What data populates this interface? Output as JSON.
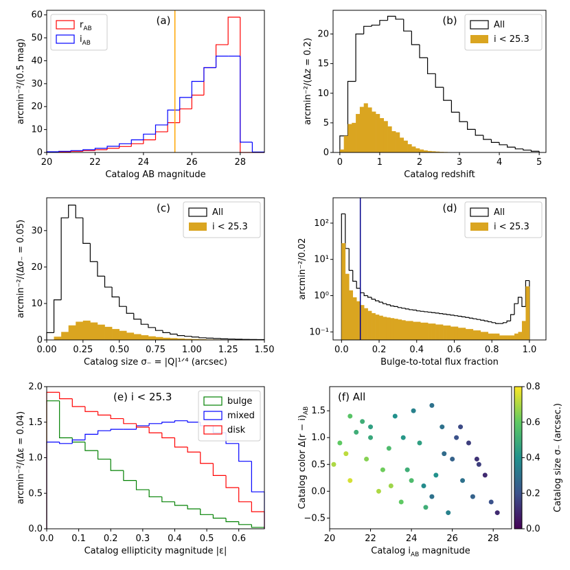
{
  "chart_data": [
    {
      "type": "histogram",
      "annotation": "(a)",
      "xlabel": "Catalog AB magnitude",
      "ylabel": "arcmin⁻²/(0.5 mag)",
      "xlim": [
        20,
        29
      ],
      "ylim": [
        0,
        62
      ],
      "xticks": [
        20,
        22,
        24,
        26,
        28
      ],
      "yticks": [
        0,
        10,
        20,
        30,
        40,
        50,
        60
      ],
      "legend": "upper left",
      "series": [
        {
          "name": "r_AB",
          "color": "#ff0000",
          "histtype": "step",
          "bins": [
            20,
            20.5,
            21,
            21.5,
            22,
            22.5,
            23,
            23.5,
            24,
            24.5,
            25,
            25.5,
            26,
            26.5,
            27,
            27.5,
            28,
            28.5,
            29
          ],
          "values": [
            0.2,
            0.3,
            0.5,
            0.8,
            1.2,
            1.8,
            2.6,
            3.8,
            5.5,
            9,
            13,
            19,
            25,
            37,
            47,
            59,
            0,
            0
          ]
        },
        {
          "name": "i_AB",
          "color": "#0000ff",
          "histtype": "step",
          "bins": [
            20,
            20.5,
            21,
            21.5,
            22,
            22.5,
            23,
            23.5,
            24,
            24.5,
            25,
            25.5,
            26,
            26.5,
            27,
            27.5,
            28,
            28.5,
            29
          ],
          "values": [
            0.3,
            0.5,
            0.8,
            1.2,
            1.8,
            2.7,
            3.8,
            5.5,
            8,
            12,
            18.5,
            24,
            31,
            37,
            42,
            42,
            4.5,
            0.2
          ]
        }
      ],
      "vlines": [
        {
          "x": 25.3,
          "color": "#ffa500"
        }
      ]
    },
    {
      "type": "histogram",
      "annotation": "(b)",
      "xlabel": "Catalog redshift",
      "ylabel": "arcmin⁻²/(Δz = 0.2)",
      "xlim": [
        -0.17,
        5.17
      ],
      "ylim": [
        0,
        24
      ],
      "xticks": [
        0,
        1,
        2,
        3,
        4,
        5
      ],
      "yticks": [
        0,
        5,
        10,
        15,
        20
      ],
      "legend": "upper right",
      "series": [
        {
          "name": "All",
          "color": "#000000",
          "histtype": "step",
          "bins": [
            0,
            0.2,
            0.4,
            0.6,
            0.8,
            1,
            1.2,
            1.4,
            1.6,
            1.8,
            2,
            2.2,
            2.4,
            2.6,
            2.8,
            3,
            3.2,
            3.4,
            3.6,
            3.8,
            4,
            4.2,
            4.4,
            4.6,
            4.8,
            5
          ],
          "values": [
            2.8,
            12,
            20,
            21.3,
            21.5,
            22.3,
            23,
            22.5,
            20.5,
            18.2,
            16,
            13.3,
            11,
            8.8,
            6.8,
            5.2,
            3.9,
            2.9,
            2.2,
            1.7,
            1.3,
            0.9,
            0.6,
            0.4,
            0.2
          ]
        },
        {
          "name": "i < 25.3",
          "color": "#daa520",
          "histtype": "stepfilled",
          "bins": [
            0,
            0.1,
            0.2,
            0.3,
            0.4,
            0.5,
            0.6,
            0.7,
            0.8,
            0.9,
            1,
            1.1,
            1.2,
            1.3,
            1.4,
            1.5,
            1.6,
            1.7,
            1.8,
            1.9,
            2,
            2.1,
            2.2,
            2.3,
            2.4,
            2.5,
            2.6,
            2.7,
            2.8,
            2.9,
            3
          ],
          "values": [
            0.5,
            2.8,
            4.8,
            5.0,
            6.5,
            7.7,
            8.3,
            7.6,
            6.9,
            6.5,
            5.8,
            5.3,
            4.4,
            3.6,
            3.4,
            2.5,
            2.0,
            1.4,
            1.0,
            0.7,
            0.5,
            0.35,
            0.25,
            0.2,
            0.15,
            0.1,
            0.08,
            0.06,
            0.04,
            0.03
          ]
        }
      ]
    },
    {
      "type": "histogram",
      "annotation": "(c)",
      "xlabel": "Catalog size σ₋ = |Q|¹ᐟ⁴ (arcsec)",
      "ylabel": "arcmin⁻²/(Δσ₋ = 0.05)",
      "xlim": [
        0,
        1.5
      ],
      "ylim": [
        0,
        39
      ],
      "xticks": [
        {
          "value": 0,
          "label": "0.00"
        },
        0.25,
        {
          "value": 0.5,
          "label": "0.50"
        },
        0.75,
        {
          "value": 1,
          "label": "1.00"
        },
        1.25,
        {
          "value": 1.5,
          "label": "1.50"
        }
      ],
      "yticks": [
        0,
        10,
        20,
        30
      ],
      "legend": "upper right",
      "series": [
        {
          "name": "All",
          "color": "#000000",
          "histtype": "step",
          "bins": [
            0,
            0.05,
            0.1,
            0.15,
            0.2,
            0.25,
            0.3,
            0.35,
            0.4,
            0.45,
            0.5,
            0.55,
            0.6,
            0.65,
            0.7,
            0.75,
            0.8,
            0.85,
            0.9,
            0.95,
            1,
            1.05,
            1.1,
            1.15,
            1.2,
            1.25,
            1.3,
            1.35,
            1.4,
            1.45,
            1.5
          ],
          "values": [
            2,
            11,
            33.5,
            37,
            33.5,
            26.5,
            21.5,
            17.5,
            14.5,
            11.8,
            9.2,
            7.3,
            5.7,
            4.3,
            3.4,
            2.6,
            2.0,
            1.6,
            1.2,
            1.0,
            0.8,
            0.6,
            0.5,
            0.4,
            0.3,
            0.25,
            0.2,
            0.15,
            0.12,
            0.1
          ]
        },
        {
          "name": "i < 25.3",
          "color": "#daa520",
          "histtype": "stepfilled",
          "bins": [
            0.05,
            0.1,
            0.15,
            0.2,
            0.25,
            0.3,
            0.35,
            0.4,
            0.45,
            0.5,
            0.55,
            0.6,
            0.65,
            0.7,
            0.75,
            0.8,
            0.85,
            0.9,
            0.95,
            1,
            1.05,
            1.1,
            1.15,
            1.2,
            1.25,
            1.3,
            1.35,
            1.4,
            1.45,
            1.5
          ],
          "values": [
            0.9,
            2.2,
            4.0,
            5.0,
            5.3,
            4.8,
            4.2,
            3.6,
            3.0,
            2.5,
            2.0,
            1.6,
            1.3,
            1.0,
            0.8,
            0.6,
            0.5,
            0.4,
            0.3,
            0.25,
            0.2,
            0.15,
            0.12,
            0.1,
            0.08,
            0.06,
            0.05,
            0.04,
            0.03
          ]
        }
      ]
    },
    {
      "type": "histogram",
      "annotation": "(d)",
      "xlabel": "Bulge-to-total flux fraction",
      "ylabel": "arcmin⁻²/0.02",
      "xlim": [
        -0.045,
        1.088
      ],
      "ylim": [
        0.06,
        500
      ],
      "yscale": "log",
      "xticks": [
        {
          "value": 0,
          "label": "0.0"
        },
        0.2,
        0.4,
        0.6,
        0.8,
        {
          "value": 1,
          "label": "1.0"
        }
      ],
      "yticks": [
        {
          "value": 0.1,
          "label": "10⁻¹"
        },
        {
          "value": 1,
          "label": "10⁰"
        },
        {
          "value": 10,
          "label": "10¹"
        },
        {
          "value": 100,
          "label": "10²"
        }
      ],
      "legend": "upper right",
      "series": [
        {
          "name": "All",
          "color": "#000000",
          "histtype": "step",
          "bins": [
            0,
            0.02,
            0.04,
            0.06,
            0.08,
            0.1,
            0.12,
            0.14,
            0.16,
            0.18,
            0.2,
            0.22,
            0.24,
            0.26,
            0.28,
            0.3,
            0.32,
            0.34,
            0.36,
            0.38,
            0.4,
            0.42,
            0.44,
            0.46,
            0.48,
            0.5,
            0.52,
            0.54,
            0.56,
            0.58,
            0.6,
            0.62,
            0.64,
            0.66,
            0.68,
            0.7,
            0.72,
            0.74,
            0.76,
            0.78,
            0.8,
            0.82,
            0.84,
            0.86,
            0.88,
            0.9,
            0.92,
            0.94,
            0.96,
            0.98,
            1
          ],
          "values": [
            180,
            20,
            5,
            2.5,
            1.6,
            1.2,
            1.0,
            0.9,
            0.8,
            0.72,
            0.66,
            0.6,
            0.56,
            0.52,
            0.5,
            0.47,
            0.45,
            0.43,
            0.41,
            0.4,
            0.38,
            0.37,
            0.36,
            0.35,
            0.34,
            0.33,
            0.32,
            0.31,
            0.3,
            0.29,
            0.28,
            0.27,
            0.26,
            0.25,
            0.24,
            0.23,
            0.22,
            0.21,
            0.2,
            0.19,
            0.18,
            0.17,
            0.17,
            0.18,
            0.2,
            0.3,
            0.6,
            0.9,
            0.5,
            2.6
          ]
        },
        {
          "name": "i < 25.3",
          "color": "#daa520",
          "histtype": "stepfilled",
          "bins": [
            0,
            0.02,
            0.04,
            0.06,
            0.08,
            0.1,
            0.12,
            0.14,
            0.16,
            0.18,
            0.2,
            0.22,
            0.24,
            0.26,
            0.28,
            0.3,
            0.32,
            0.34,
            0.36,
            0.38,
            0.4,
            0.42,
            0.44,
            0.46,
            0.48,
            0.5,
            0.52,
            0.54,
            0.56,
            0.58,
            0.6,
            0.62,
            0.64,
            0.66,
            0.68,
            0.7,
            0.72,
            0.74,
            0.76,
            0.78,
            0.8,
            0.82,
            0.84,
            0.86,
            0.88,
            0.9,
            0.92,
            0.94,
            0.96,
            0.98,
            1
          ],
          "values": [
            28,
            4,
            1.4,
            0.9,
            0.7,
            0.55,
            0.45,
            0.38,
            0.33,
            0.3,
            0.28,
            0.26,
            0.25,
            0.24,
            0.23,
            0.22,
            0.21,
            0.2,
            0.2,
            0.19,
            0.19,
            0.18,
            0.18,
            0.17,
            0.17,
            0.16,
            0.16,
            0.15,
            0.15,
            0.14,
            0.14,
            0.13,
            0.13,
            0.12,
            0.12,
            0.11,
            0.11,
            0.1,
            0.1,
            0.09,
            0.09,
            0.09,
            0.08,
            0.08,
            0.08,
            0.08,
            0.09,
            0.1,
            0.2,
            1.8
          ]
        }
      ],
      "vlines": [
        {
          "x": 0.1,
          "color": "#00008b"
        }
      ]
    },
    {
      "type": "histogram",
      "annotation": "(e) i < 25.3",
      "xlabel": "Catalog ellipticity magnitude |ε|",
      "ylabel": "arcmin⁻²/(Δε = 0.04)",
      "xlim": [
        0,
        0.68
      ],
      "ylim": [
        0,
        2
      ],
      "xticks": [
        {
          "value": 0,
          "label": "0.0"
        },
        0.1,
        0.2,
        0.3,
        0.4,
        0.5,
        0.6
      ],
      "yticks": [
        {
          "value": 0,
          "label": "0.0"
        },
        0.5,
        {
          "value": 1,
          "label": "1.0"
        },
        1.5,
        {
          "value": 2,
          "label": "2.0"
        }
      ],
      "legend": "upper right",
      "series": [
        {
          "name": "bulge",
          "color": "#008000",
          "histtype": "step",
          "bins": [
            0,
            0.04,
            0.08,
            0.12,
            0.16,
            0.2,
            0.24,
            0.28,
            0.32,
            0.36,
            0.4,
            0.44,
            0.48,
            0.52,
            0.56,
            0.6,
            0.64,
            0.68
          ],
          "values": [
            1.8,
            1.28,
            1.22,
            1.1,
            0.98,
            0.82,
            0.68,
            0.55,
            0.45,
            0.38,
            0.33,
            0.28,
            0.2,
            0.15,
            0.1,
            0.06,
            0.02
          ]
        },
        {
          "name": "mixed",
          "color": "#0000ff",
          "histtype": "step",
          "bins": [
            0,
            0.04,
            0.08,
            0.12,
            0.16,
            0.2,
            0.24,
            0.28,
            0.32,
            0.36,
            0.4,
            0.44,
            0.48,
            0.52,
            0.56,
            0.6,
            0.64,
            0.68
          ],
          "values": [
            1.22,
            1.2,
            1.25,
            1.33,
            1.38,
            1.4,
            1.4,
            1.45,
            1.48,
            1.5,
            1.52,
            1.5,
            1.45,
            1.35,
            1.2,
            0.95,
            0.52
          ]
        },
        {
          "name": "disk",
          "color": "#ff0000",
          "histtype": "step",
          "bins": [
            0,
            0.04,
            0.08,
            0.12,
            0.16,
            0.2,
            0.24,
            0.28,
            0.32,
            0.36,
            0.4,
            0.44,
            0.48,
            0.52,
            0.56,
            0.6,
            0.64,
            0.68
          ],
          "values": [
            1.92,
            1.83,
            1.72,
            1.65,
            1.6,
            1.55,
            1.48,
            1.43,
            1.35,
            1.28,
            1.15,
            1.08,
            0.92,
            0.75,
            0.58,
            0.38,
            0.24
          ]
        }
      ]
    },
    {
      "type": "scatter",
      "annotation": "(f) All",
      "xlabel": "Catalog i_AB magnitude",
      "ylabel": "Catalog color Δ(r − i)_AB",
      "xlim": [
        20,
        28.9
      ],
      "ylim": [
        -0.7,
        1.95
      ],
      "xticks": [
        20,
        22,
        24,
        26,
        28
      ],
      "yticks": [
        {
          "value": -0.5,
          "label": "−0.5"
        },
        {
          "value": 0,
          "label": "0.0"
        },
        0.5,
        {
          "value": 1,
          "label": "1.0"
        },
        1.5
      ],
      "colormap": "viridis",
      "clim": [
        0,
        0.8
      ],
      "cticks": [
        {
          "value": 0,
          "label": "0.0"
        },
        0.2,
        0.4,
        0.6,
        0.8
      ],
      "clabel": "Catalog size σ₋ (arcsec.)",
      "x": [
        20.2,
        20.5,
        21,
        21.3,
        21.8,
        22,
        22.4,
        22.9,
        23.2,
        23.5,
        23.8,
        24.1,
        24.4,
        24.7,
        25,
        25.2,
        25.5,
        25.8,
        26,
        26.2,
        26.5,
        26.8,
        27,
        27.3,
        27.6,
        27.9,
        28.2,
        20.8,
        21.6,
        22.6,
        23.6,
        24.6,
        25.6,
        26.4,
        27.2,
        24,
        25,
        23,
        22,
        21
      ],
      "y": [
        0.5,
        0.9,
        0.2,
        1.1,
        0.6,
        1.2,
        0.0,
        0.8,
        1.4,
        -0.2,
        0.4,
        1.5,
        0.9,
        -0.3,
        1.6,
        0.3,
        1.2,
        -0.4,
        0.6,
        1.0,
        0.2,
        0.9,
        -0.1,
        0.5,
        0.3,
        -0.2,
        -0.4,
        0.7,
        1.3,
        0.4,
        1.0,
        0.1,
        0.7,
        1.2,
        0.6,
        0.2,
        -0.1,
        0.1,
        1.0,
        1.4
      ],
      "c": [
        0.7,
        0.6,
        0.75,
        0.5,
        0.65,
        0.45,
        0.7,
        0.55,
        0.4,
        0.6,
        0.5,
        0.35,
        0.45,
        0.5,
        0.3,
        0.4,
        0.3,
        0.35,
        0.25,
        0.2,
        0.3,
        0.15,
        0.25,
        0.15,
        0.1,
        0.2,
        0.1,
        0.72,
        0.5,
        0.62,
        0.42,
        0.38,
        0.28,
        0.18,
        0.12,
        0.55,
        0.3,
        0.68,
        0.48,
        0.58
      ]
    }
  ]
}
